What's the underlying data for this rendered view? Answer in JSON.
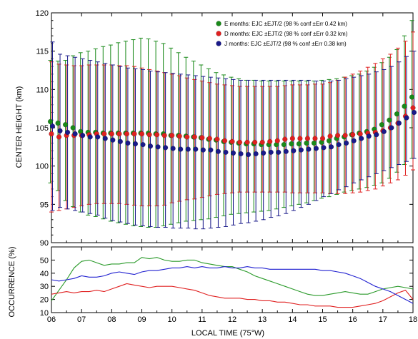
{
  "chart_data": [
    {
      "type": "scatter",
      "title": "",
      "ylabel": "CENTER HEIGHT (km)",
      "xlim": [
        6,
        18
      ],
      "ylim": [
        90,
        120
      ],
      "x_tick_labels": [
        "06",
        "07",
        "08",
        "09",
        "10",
        "11",
        "12",
        "13",
        "14",
        "15",
        "16",
        "17",
        "18"
      ],
      "y_tick_labels": [
        "90",
        "95",
        "100",
        "105",
        "110",
        "115",
        "120"
      ],
      "x": [
        6.0,
        6.25,
        6.5,
        6.75,
        7.0,
        7.25,
        7.5,
        7.75,
        8.0,
        8.25,
        8.5,
        8.75,
        9.0,
        9.25,
        9.5,
        9.75,
        10.0,
        10.25,
        10.5,
        10.75,
        11.0,
        11.25,
        11.5,
        11.75,
        12.0,
        12.25,
        12.5,
        12.75,
        13.0,
        13.25,
        13.5,
        13.75,
        14.0,
        14.25,
        14.5,
        14.75,
        15.0,
        15.25,
        15.5,
        15.75,
        16.0,
        16.25,
        16.5,
        16.75,
        17.0,
        17.25,
        17.5,
        17.75,
        18.0
      ],
      "legend_placement": "top-right",
      "series": [
        {
          "name": "E months: EJC ±EJT/2 (98 % conf ±Err 0.42 km)",
          "color": "#1a8a1a",
          "center": [
            105.8,
            105.6,
            105.4,
            105.0,
            104.5,
            104.4,
            104.4,
            104.3,
            104.3,
            104.3,
            104.3,
            104.3,
            104.3,
            104.3,
            104.2,
            104.2,
            104.0,
            104.0,
            103.9,
            103.8,
            103.7,
            103.5,
            103.4,
            103.2,
            103.1,
            103.0,
            102.9,
            102.9,
            102.8,
            102.8,
            102.8,
            102.8,
            102.9,
            102.9,
            103.0,
            103.0,
            103.1,
            103.3,
            103.6,
            103.8,
            104.1,
            104.3,
            104.5,
            104.8,
            105.4,
            106.0,
            106.8,
            107.8,
            109.0
          ],
          "upper": [
            113.8,
            113.7,
            113.8,
            114.4,
            114.8,
            115.0,
            115.3,
            115.6,
            115.8,
            116.1,
            116.3,
            116.5,
            116.7,
            116.6,
            116.3,
            116.0,
            115.4,
            114.8,
            114.2,
            113.7,
            113.2,
            112.7,
            112.2,
            111.9,
            111.6,
            111.4,
            111.2,
            111.2,
            111.1,
            111.1,
            111.1,
            111.1,
            111.1,
            111.1,
            111.1,
            111.1,
            111.2,
            111.3,
            111.4,
            111.6,
            111.8,
            112.0,
            112.4,
            112.9,
            113.5,
            114.2,
            115.2,
            117.0,
            119.0
          ],
          "lower": [
            97.8,
            96.8,
            95.5,
            94.7,
            94.0,
            93.6,
            93.4,
            93.1,
            92.8,
            92.6,
            92.4,
            92.2,
            92.1,
            92.0,
            92.0,
            92.2,
            92.4,
            92.6,
            92.8,
            92.9,
            93.0,
            93.1,
            93.3,
            93.5,
            93.7,
            93.8,
            93.9,
            94.0,
            94.1,
            94.2,
            94.4,
            94.6,
            94.8,
            95.0,
            95.2,
            95.5,
            95.8,
            96.0,
            96.3,
            96.6,
            96.8,
            97.0,
            97.2,
            97.5,
            97.8,
            98.4,
            99.2,
            100.2,
            101.0
          ]
        },
        {
          "name": "D months: EJC ±EJT/2 (98 % conf ±Err 0.32 km)",
          "color": "#e02020",
          "center": [
            104.2,
            103.8,
            104.0,
            104.0,
            104.0,
            104.1,
            104.2,
            104.2,
            104.2,
            104.2,
            104.2,
            104.2,
            104.2,
            104.1,
            104.1,
            104.0,
            104.0,
            103.9,
            103.8,
            103.8,
            103.7,
            103.6,
            103.5,
            103.3,
            103.2,
            103.1,
            103.1,
            103.1,
            103.1,
            103.2,
            103.3,
            103.5,
            103.6,
            103.6,
            103.6,
            103.6,
            103.6,
            103.9,
            104.0,
            104.0,
            104.1,
            104.2,
            104.3,
            104.4,
            104.6,
            105.0,
            105.6,
            106.5,
            107.6
          ],
          "upper": [
            113.6,
            113.3,
            113.2,
            113.1,
            113.1,
            113.2,
            113.2,
            113.2,
            113.2,
            113.1,
            113.1,
            113.0,
            112.8,
            112.6,
            112.4,
            112.2,
            112.0,
            111.8,
            111.5,
            111.3,
            111.1,
            110.9,
            110.7,
            110.6,
            110.5,
            110.4,
            110.4,
            110.4,
            110.4,
            110.4,
            110.4,
            110.5,
            110.6,
            110.6,
            110.6,
            110.7,
            110.7,
            110.9,
            111.2,
            111.6,
            112.0,
            112.4,
            112.9,
            113.4,
            114.0,
            114.6,
            115.4,
            116.3,
            117.5
          ],
          "lower": [
            94.0,
            94.2,
            94.4,
            94.6,
            94.8,
            95.0,
            95.1,
            95.1,
            95.1,
            95.1,
            95.0,
            94.9,
            94.8,
            94.8,
            94.8,
            94.9,
            95.2,
            95.4,
            95.6,
            95.7,
            95.9,
            96.1,
            96.3,
            96.4,
            96.5,
            96.6,
            96.6,
            96.6,
            96.6,
            96.6,
            96.6,
            96.6,
            96.5,
            96.5,
            96.5,
            96.5,
            96.5,
            96.4,
            96.4,
            96.4,
            96.5,
            96.6,
            96.8,
            97.0,
            97.4,
            97.8,
            98.2,
            98.8,
            99.5
          ]
        },
        {
          "name": "J months: EJC ±EJT/2 (98 % conf ±Err 0.38 km)",
          "color": "#1a1a8a",
          "center": [
            105.2,
            104.6,
            104.4,
            104.2,
            104.0,
            103.8,
            103.8,
            103.6,
            103.4,
            103.2,
            103.0,
            102.9,
            102.8,
            102.6,
            102.5,
            102.4,
            102.3,
            102.2,
            102.2,
            102.2,
            102.1,
            102.1,
            101.9,
            101.8,
            101.7,
            101.6,
            101.5,
            101.6,
            101.7,
            101.8,
            101.8,
            101.9,
            102.0,
            102.1,
            102.2,
            102.3,
            102.4,
            102.5,
            102.8,
            103.0,
            103.3,
            103.6,
            103.9,
            104.1,
            104.5,
            105.0,
            105.6,
            106.3,
            107.0
          ],
          "upper": [
            116.2,
            114.6,
            114.4,
            114.2,
            114.0,
            113.8,
            113.6,
            113.4,
            113.2,
            113.0,
            112.8,
            112.7,
            112.6,
            112.4,
            112.3,
            112.2,
            112.1,
            112.0,
            111.9,
            111.8,
            111.7,
            111.6,
            111.5,
            111.4,
            111.3,
            111.2,
            111.2,
            111.2,
            111.2,
            111.2,
            111.2,
            111.2,
            111.2,
            111.2,
            111.2,
            111.1,
            111.1,
            111.1,
            111.2,
            111.4,
            111.6,
            111.8,
            112.0,
            112.3,
            112.6,
            113.0,
            113.6,
            114.3,
            115.0
          ],
          "lower": [
            94.2,
            94.6,
            94.4,
            94.2,
            94.0,
            93.8,
            93.6,
            93.2,
            92.9,
            92.7,
            92.5,
            92.3,
            92.2,
            92.1,
            92.0,
            92.0,
            91.9,
            91.9,
            91.9,
            91.8,
            91.8,
            91.9,
            92.0,
            92.1,
            92.3,
            92.5,
            92.6,
            92.8,
            93.0,
            93.3,
            93.5,
            93.8,
            94.2,
            94.6,
            95.0,
            95.5,
            96.0,
            96.4,
            96.9,
            97.3,
            97.8,
            98.2,
            98.6,
            99.0,
            99.4,
            99.8,
            100.2,
            100.6,
            101.0
          ]
        }
      ]
    },
    {
      "type": "line",
      "title": "",
      "xlabel": "LOCAL TIME (75°W)",
      "ylabel": "OCCURRENCE (%)",
      "xlim": [
        6,
        18
      ],
      "ylim": [
        10,
        60
      ],
      "x_tick_labels": [
        "06",
        "07",
        "08",
        "09",
        "10",
        "11",
        "12",
        "13",
        "14",
        "15",
        "16",
        "17",
        "18"
      ],
      "y_tick_labels": [
        "10",
        "20",
        "30",
        "40",
        "50"
      ],
      "x": [
        6.0,
        6.25,
        6.5,
        6.75,
        7.0,
        7.25,
        7.5,
        7.75,
        8.0,
        8.25,
        8.5,
        8.75,
        9.0,
        9.25,
        9.5,
        9.75,
        10.0,
        10.25,
        10.5,
        10.75,
        11.0,
        11.25,
        11.5,
        11.75,
        12.0,
        12.25,
        12.5,
        12.75,
        13.0,
        13.25,
        13.5,
        13.75,
        14.0,
        14.25,
        14.5,
        14.75,
        15.0,
        15.25,
        15.5,
        15.75,
        16.0,
        16.25,
        16.5,
        16.75,
        17.0,
        17.25,
        17.5,
        17.75,
        18.0
      ],
      "series": [
        {
          "color": "#2a9a2a",
          "values": [
            19,
            27,
            35,
            44,
            49,
            50,
            48,
            46,
            47,
            47,
            48,
            48,
            52,
            51,
            52,
            50,
            49,
            49,
            50,
            50,
            48,
            47,
            46,
            45,
            45,
            43,
            41,
            38,
            36,
            34,
            32,
            30,
            28,
            26,
            24,
            23,
            23,
            24,
            25,
            26,
            25,
            24,
            24,
            26,
            28,
            29,
            30,
            29,
            28
          ]
        },
        {
          "color": "#e02020",
          "values": [
            24,
            25,
            26,
            25,
            26,
            26,
            27,
            26,
            28,
            30,
            32,
            31,
            30,
            29,
            30,
            30,
            30,
            29,
            28,
            27,
            25,
            23,
            22,
            21,
            21,
            21,
            20,
            20,
            19,
            19,
            18,
            18,
            17,
            16,
            16,
            15,
            15,
            15,
            14,
            14,
            14,
            15,
            16,
            17,
            19,
            22,
            25,
            27,
            20
          ]
        },
        {
          "color": "#2020d0",
          "values": [
            35,
            34,
            35,
            36,
            38,
            37,
            37,
            38,
            40,
            41,
            40,
            39,
            41,
            42,
            42,
            43,
            44,
            44,
            45,
            44,
            45,
            44,
            44,
            45,
            44,
            44,
            45,
            44,
            44,
            43,
            43,
            43,
            43,
            43,
            43,
            43,
            42,
            42,
            41,
            40,
            38,
            36,
            33,
            30,
            28,
            26,
            23,
            20,
            17
          ]
        }
      ]
    }
  ]
}
